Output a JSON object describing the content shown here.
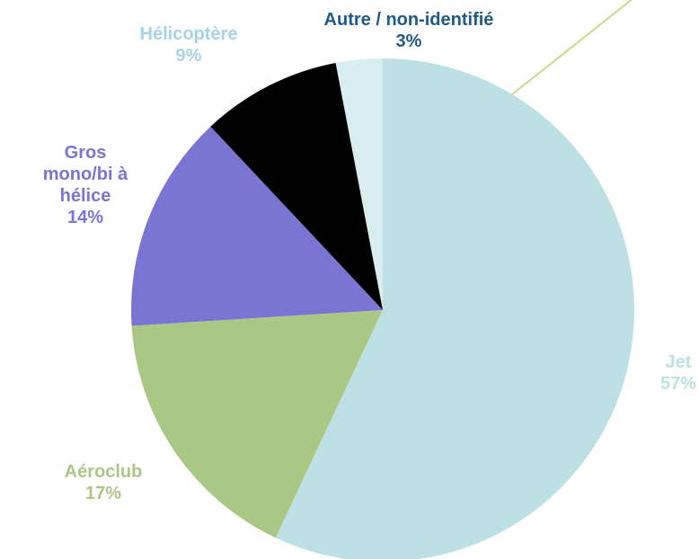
{
  "chart_data": {
    "type": "pie",
    "categories": [
      "Jet",
      "Aéroclub",
      "Gros mono/bi à hélice",
      "Hélicoptère",
      "Autre / non-identifié"
    ],
    "values": [
      57,
      17,
      14,
      9,
      3
    ],
    "value_labels": [
      "57%",
      "17%",
      "14%",
      "9%",
      "3%"
    ],
    "colors": [
      "#bde0e4",
      "#a9c785",
      "#7a74d3",
      "#000000",
      "#d9eef1"
    ],
    "label_colors": [
      "#bde0e4",
      "#a9c785",
      "#7a74d3",
      "#a7d3ea",
      "#1f5a89"
    ]
  }
}
